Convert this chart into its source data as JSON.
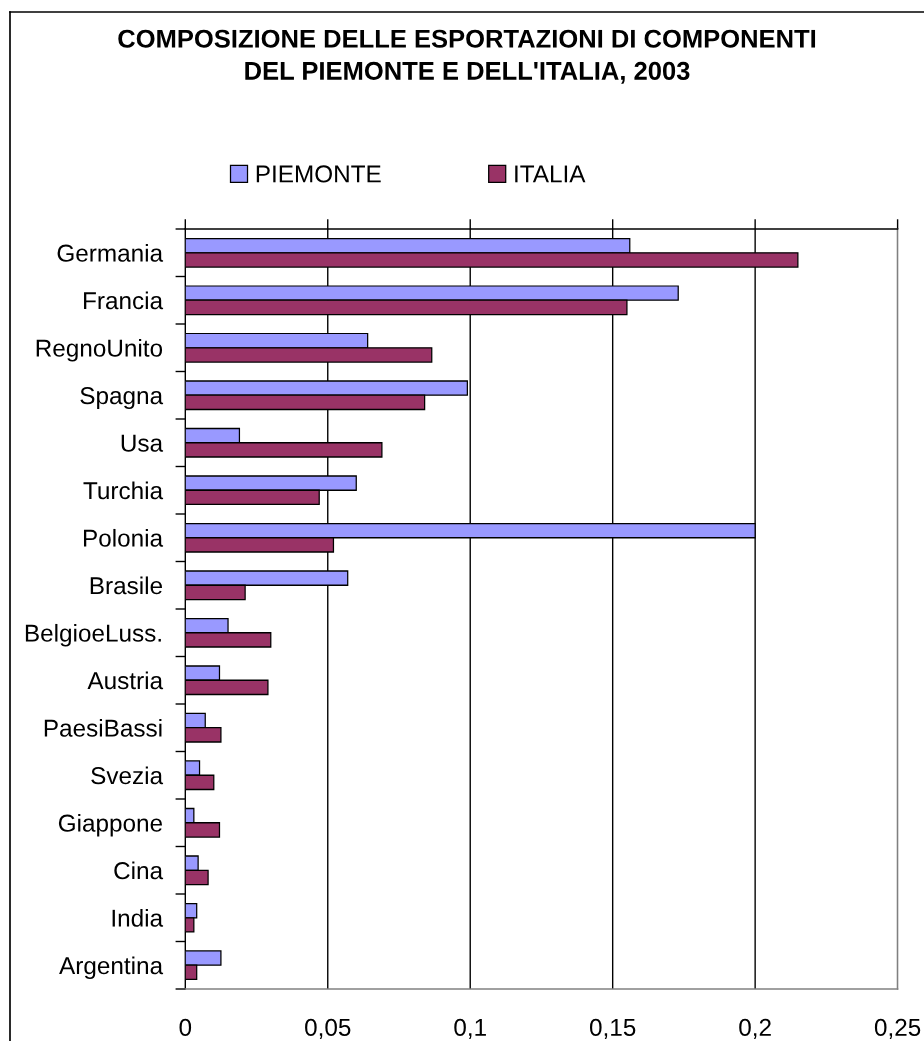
{
  "chart_data": {
    "type": "bar",
    "orientation": "horizontal",
    "title": "COMPOSIZIONE DELLE ESPORTAZIONI DI COMPONENTI\nDEL PIEMONTE E DELL'ITALIA, 2003",
    "categories": [
      "Germania",
      "Francia",
      "RegnoUnito",
      "Spagna",
      "Usa",
      "Turchia",
      "Polonia",
      "Brasile",
      "BelgioeLuss.",
      "Austria",
      "PaesiBassi",
      "Svezia",
      "Giappone",
      "Cina",
      "India",
      "Argentina"
    ],
    "series": [
      {
        "name": "PIEMONTE",
        "color": "#9999ff",
        "values": [
          0.156,
          0.173,
          0.064,
          0.099,
          0.019,
          0.06,
          0.2,
          0.057,
          0.015,
          0.012,
          0.007,
          0.005,
          0.003,
          0.0045,
          0.004,
          0.0125
        ]
      },
      {
        "name": "ITALIA",
        "color": "#993366",
        "values": [
          0.215,
          0.155,
          0.0865,
          0.084,
          0.069,
          0.047,
          0.052,
          0.021,
          0.03,
          0.029,
          0.0125,
          0.01,
          0.012,
          0.008,
          0.003,
          0.004
        ]
      }
    ],
    "xlim": [
      0,
      0.25
    ],
    "xticks": [
      0,
      {
        "value": 0.05,
        "label": "0,05"
      },
      {
        "value": 0.1,
        "label": "0,1"
      },
      {
        "value": 0.15,
        "label": "0,15"
      },
      {
        "value": 0.2,
        "label": "0,2"
      },
      {
        "value": 0.25,
        "label": "0,25"
      }
    ],
    "grid": "x",
    "legend": "top"
  }
}
